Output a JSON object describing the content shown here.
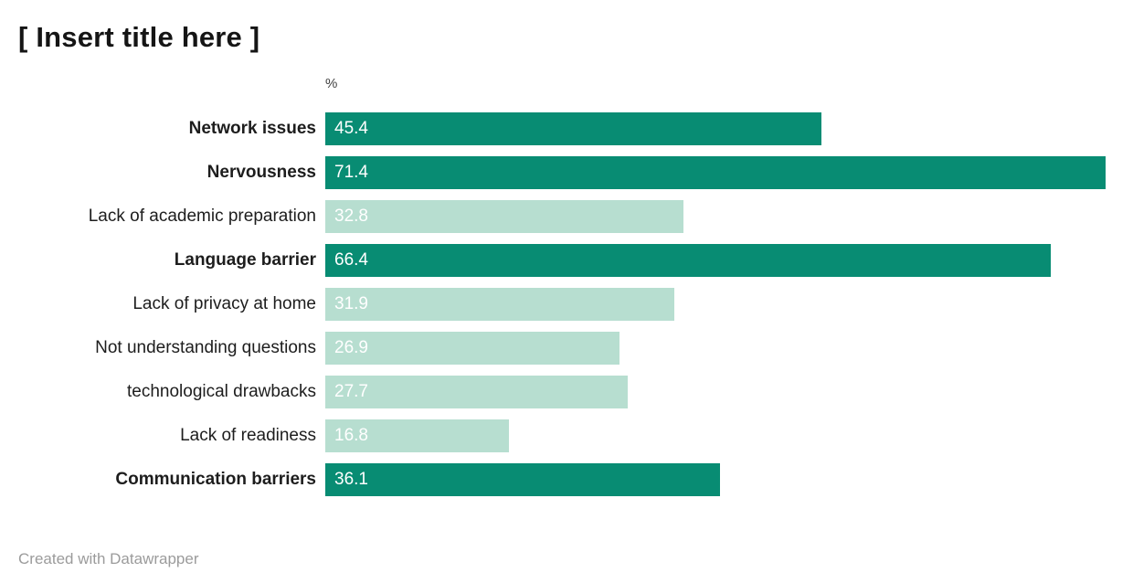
{
  "title": "[ Insert title here ]",
  "footer": "Created with Datawrapper",
  "chart_data": {
    "type": "bar",
    "orientation": "horizontal",
    "title": "[ Insert title here ]",
    "axis_label": "%",
    "xlim": [
      0,
      71.4
    ],
    "grid": false,
    "legend": "none",
    "categories": [
      "Network issues",
      "Nervousness",
      "Lack of academic preparation",
      "Language barrier",
      "Lack of privacy at home",
      "Not understanding questions",
      "technological drawbacks",
      "Lack of readiness",
      "Communication barriers"
    ],
    "values": [
      45.4,
      71.4,
      32.8,
      66.4,
      31.9,
      26.9,
      27.7,
      16.8,
      36.1
    ],
    "emphasized": [
      true,
      true,
      false,
      true,
      false,
      false,
      false,
      false,
      true
    ],
    "colors": {
      "bar_dark": "#088c73",
      "bar_light": "#b7ded0",
      "value_text": "#ffffff"
    }
  }
}
